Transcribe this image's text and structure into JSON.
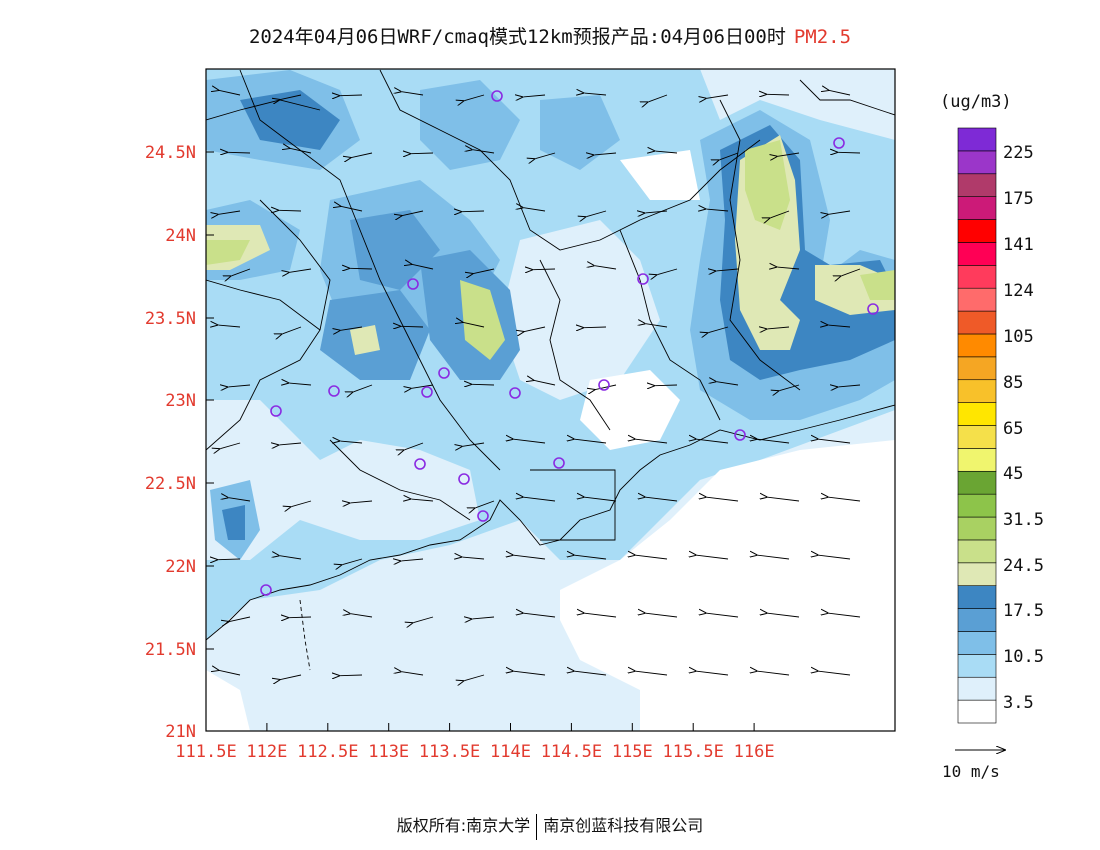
{
  "title": {
    "main": "2024年04月06日WRF/cmaq模式12km预报产品:04月06日00时",
    "variable": "PM2.5"
  },
  "axes": {
    "lat_ticks": [
      "24.5N",
      "24N",
      "23.5N",
      "23N",
      "22.5N",
      "22N",
      "21.5N",
      "21N"
    ],
    "lon_ticks": [
      "111.5E",
      "112E",
      "112.5E",
      "113E",
      "113.5E",
      "114E",
      "114.5E",
      "115E",
      "115.5E",
      "116E"
    ]
  },
  "legend": {
    "unit": "(ug/m3)",
    "labels": [
      "225",
      "175",
      "141",
      "124",
      "105",
      "85",
      "65",
      "45",
      "31.5",
      "24.5",
      "17.5",
      "10.5",
      "3.5"
    ],
    "colors": [
      "#ffffff",
      "#dff0fb",
      "#a9dcf5",
      "#7fbfe8",
      "#5a9fd4",
      "#3d86c2",
      "#dfe8b5",
      "#c9e08a",
      "#a9d162",
      "#8dc44a",
      "#6aa533",
      "#f0f56e",
      "#f5e04a",
      "#ffe600",
      "#f8c12a",
      "#f5a623",
      "#ff8a00",
      "#ef5a28",
      "#ff6b6b",
      "#ff3b5c",
      "#ff0055",
      "#ff0000",
      "#cc1a78",
      "#b03a6a",
      "#9b36c9",
      "#7e2ad6"
    ]
  },
  "wind_reference": {
    "label": "10 m/s"
  },
  "copyright": {
    "left": "版权所有:南京大学",
    "right": "南京创蓝科技有限公司"
  },
  "stations_count_hint": "purple circles mark monitoring stations",
  "map_colors": {
    "clean": "#ffffff",
    "very_low": "#dff0fb",
    "low": "#a9dcf5",
    "mid": "#7fbfe8",
    "mid2": "#5a9fd4",
    "high": "#3d86c2",
    "pale_green": "#dfe8b5",
    "green": "#c9e08a",
    "station": "#8a2be2"
  }
}
